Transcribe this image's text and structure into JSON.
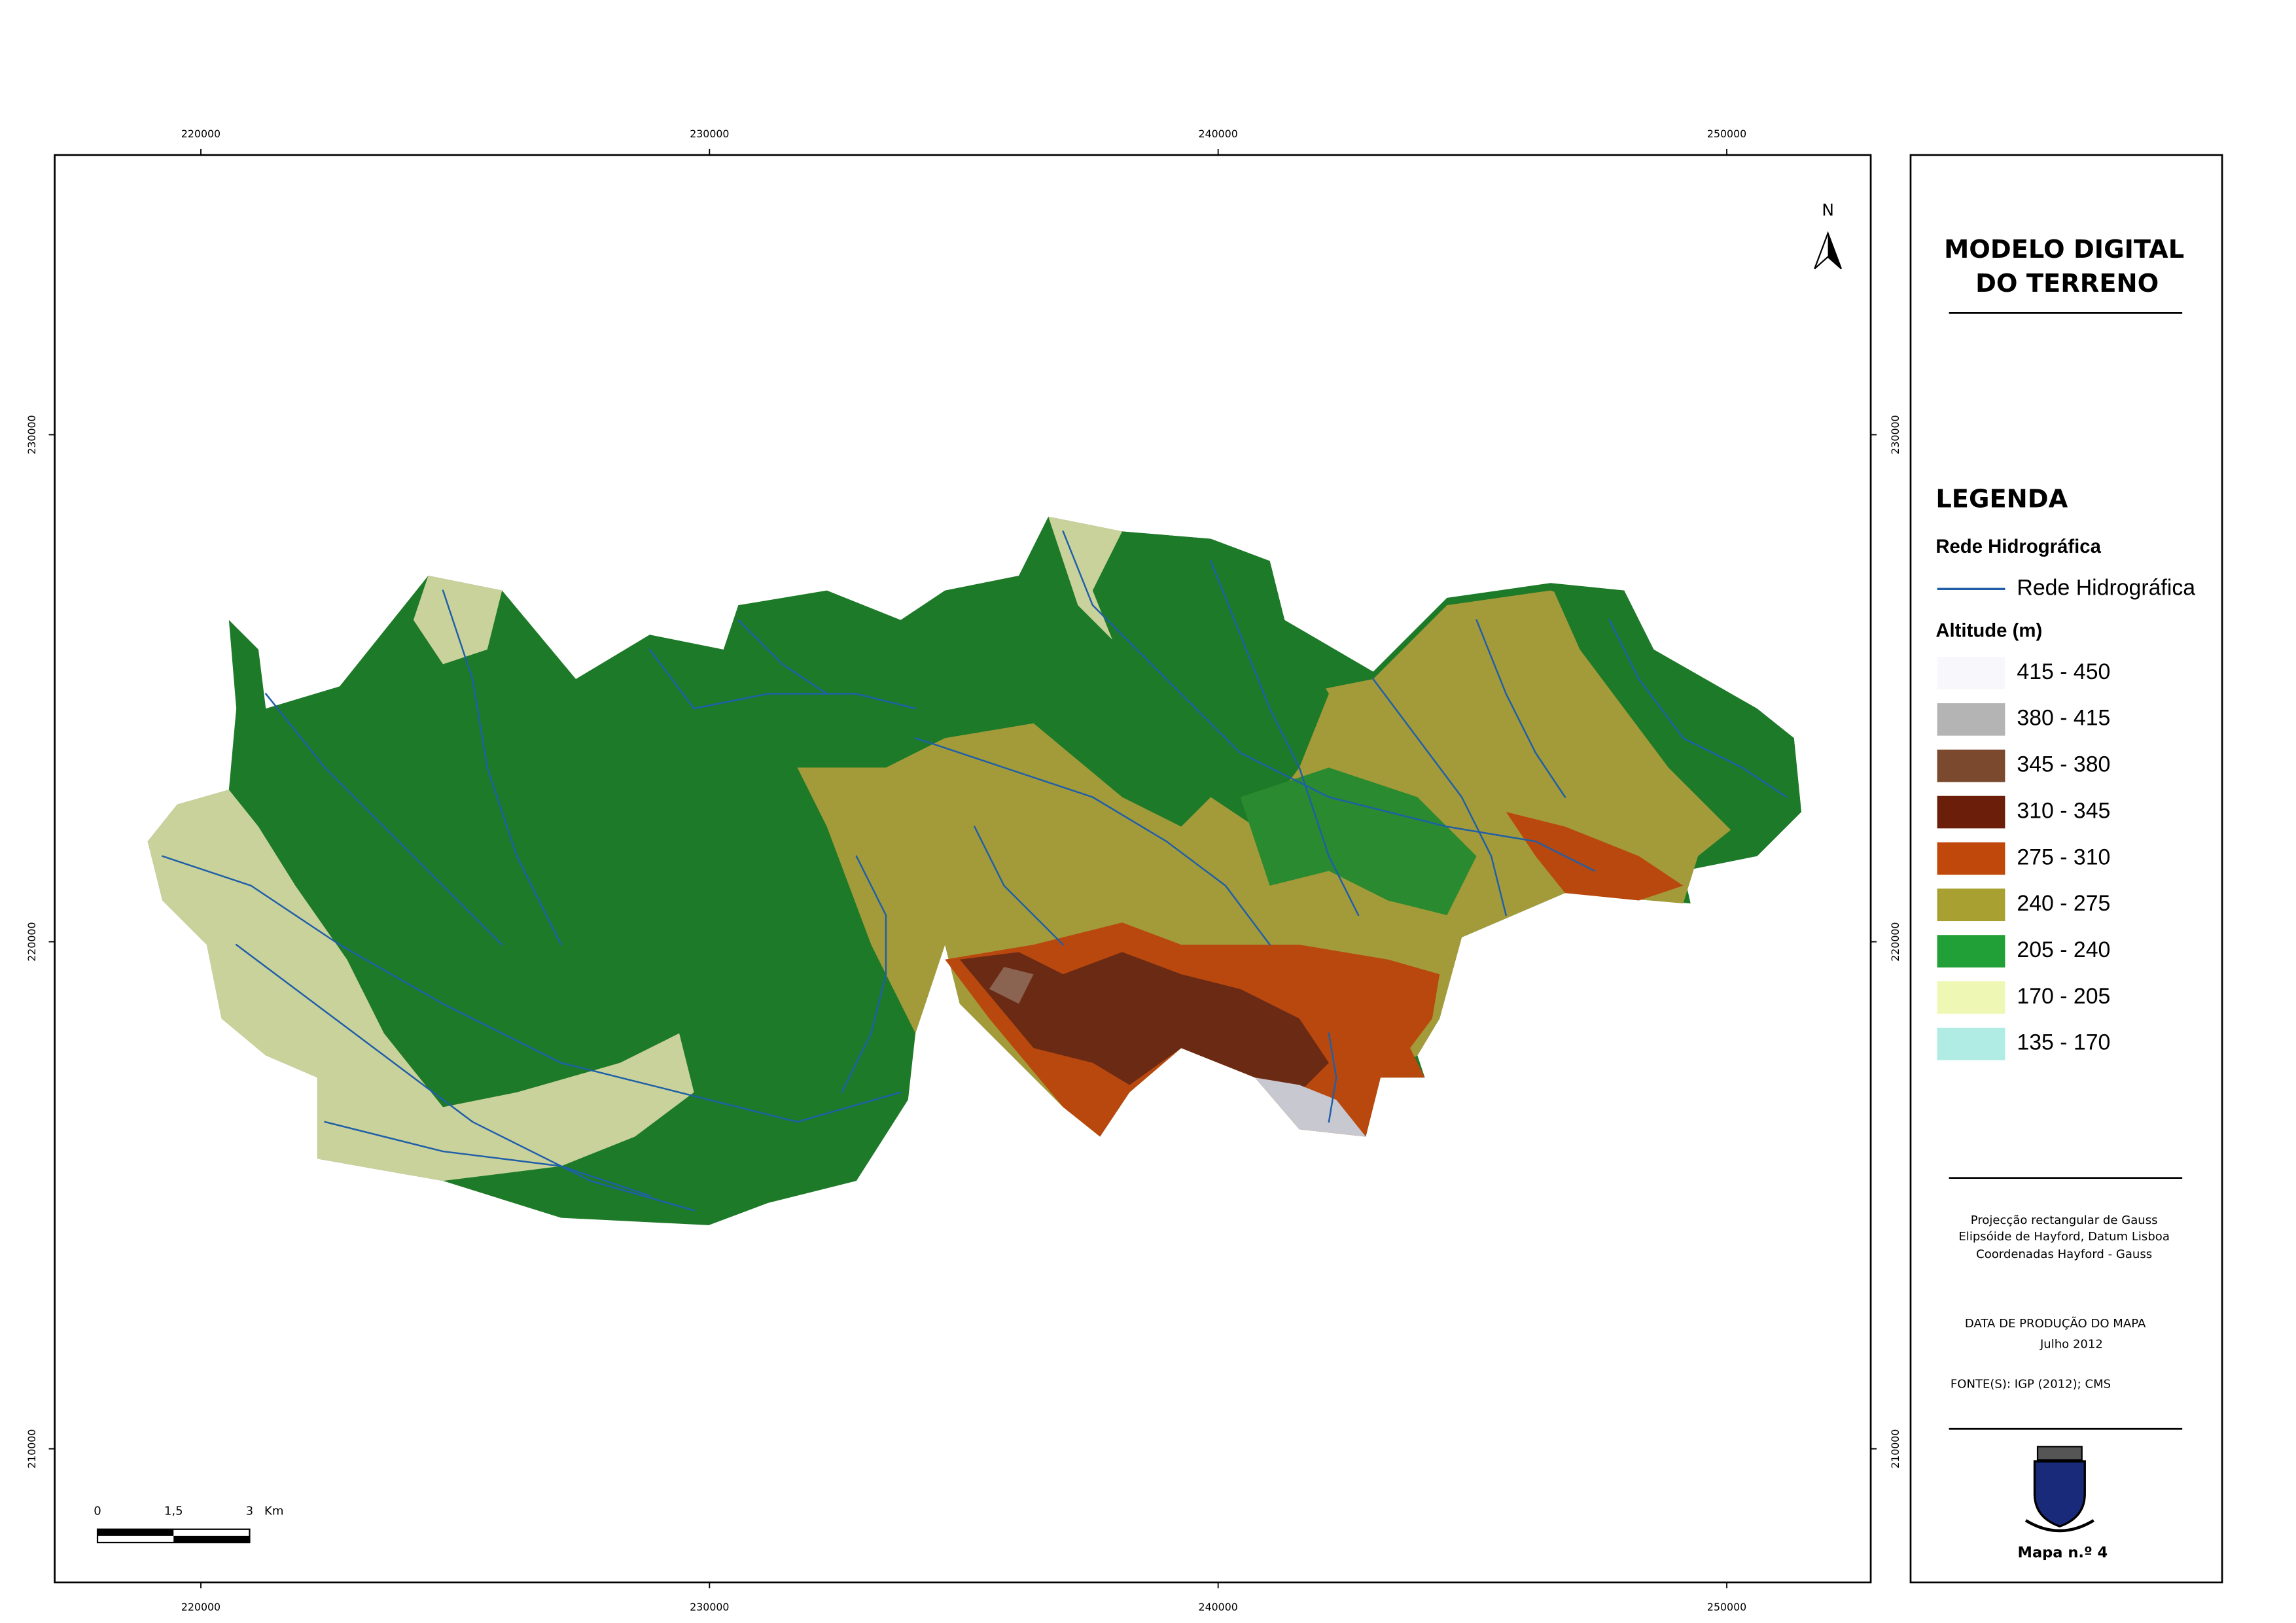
{
  "north_arrow": "N",
  "grid": {
    "x_ticks": [
      220000,
      230000,
      240000,
      250000
    ],
    "y_ticks": [
      230000,
      220000,
      210000
    ]
  },
  "title": [
    "MODELO DIGITAL",
    "DO TERRENO"
  ],
  "legend": {
    "title": "LEGENDA",
    "hydro": {
      "heading": "Rede Hidrográfica",
      "label": "Rede Hidrográfica",
      "color": "#1f5fa8"
    },
    "altitude": {
      "heading": "Altitude (m)",
      "classes": [
        {
          "label": "415 - 450",
          "color": "#f8f8fc"
        },
        {
          "label": "380 - 415",
          "color": "#b4b4b4"
        },
        {
          "label": "345 - 380",
          "color": "#7b4a2e"
        },
        {
          "label": "310 - 345",
          "color": "#6b1e0a"
        },
        {
          "label": "275 - 310",
          "color": "#c0480a"
        },
        {
          "label": "240 - 275",
          "color": "#a8a030"
        },
        {
          "label": "205 - 240",
          "color": "#22a038"
        },
        {
          "label": "170 - 205",
          "color": "#eef8b4"
        },
        {
          "label": "135 - 170",
          "color": "#b0ece4"
        }
      ]
    }
  },
  "notes": {
    "projection": [
      "Projecção rectangular de Gauss",
      "Elipsóide de Hayford, Datum Lisboa",
      "Coordenadas Hayford - Gauss"
    ],
    "production": [
      "DATA DE PRODUÇÃO DO MAPA",
      "Julho 2012"
    ],
    "sources": "FONTE(S): IGP (2012); CMS"
  },
  "scale_bar": {
    "labels": [
      "0",
      "1,5",
      "3"
    ],
    "unit": "Km"
  },
  "map_number": "Mapa n.º 4"
}
